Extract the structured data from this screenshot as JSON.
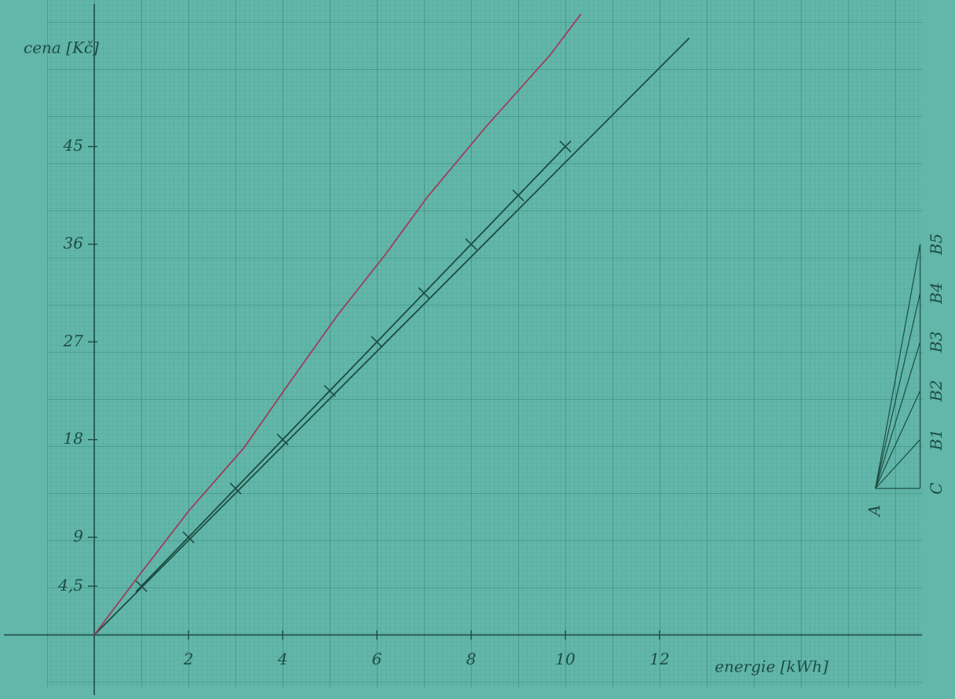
{
  "chart_data": {
    "type": "line",
    "x_label": "energie [kWh]",
    "y_label": "cena [Kč]",
    "xlim": [
      -2,
      18.27
    ],
    "ylim": [
      -5.9,
      58.5
    ],
    "xticks": [
      2,
      4,
      6,
      8,
      10,
      12
    ],
    "yticks": [
      {
        "value": 4.5,
        "label": "4,5"
      },
      9,
      18,
      27,
      36,
      45
    ],
    "series": [
      {
        "color": "#1d4d43",
        "marker": "x",
        "line": true,
        "x": [
          1,
          2,
          3,
          4,
          5,
          6,
          7,
          8,
          9,
          10
        ],
        "values": [
          4.5,
          9,
          13.5,
          18,
          22.5,
          27,
          31.5,
          36,
          40.5,
          45
        ]
      },
      {
        "color": "#1d4d43",
        "line": true,
        "x": [
          0,
          12.63
        ],
        "values": [
          0,
          55
        ]
      },
      {
        "color": "#9c3f5e",
        "line": true,
        "x": [
          0,
          0.92,
          2,
          3.17,
          4.17,
          5.17,
          6.17,
          7.08,
          8.33,
          9.67,
          10.33
        ],
        "values": [
          0,
          5.3,
          11.4,
          17.2,
          23.4,
          29.5,
          35,
          40.4,
          46.9,
          53.4,
          57.2
        ]
      }
    ],
    "annotations": [
      {
        "text": "A",
        "x": 16.58,
        "y": 13.5
      },
      {
        "text": "C",
        "x": 17.53,
        "y": 13.5
      },
      {
        "text": "B1",
        "x": 17.53,
        "y": 18
      },
      {
        "text": "B2",
        "x": 17.53,
        "y": 22.5
      },
      {
        "text": "B3",
        "x": 17.53,
        "y": 27
      },
      {
        "text": "B4",
        "x": 17.53,
        "y": 31.5
      },
      {
        "text": "B5",
        "x": 17.53,
        "y": 36
      }
    ]
  }
}
